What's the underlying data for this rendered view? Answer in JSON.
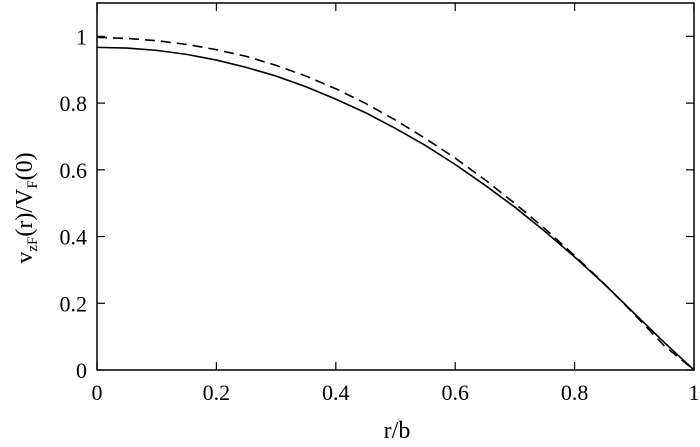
{
  "chart_data": {
    "type": "line",
    "title": "",
    "xlabel": "r/b",
    "ylabel": {
      "parts": [
        {
          "text": "v",
          "sub": false
        },
        {
          "text": "zF",
          "sub": true
        },
        {
          "text": "(r)/V",
          "sub": false
        },
        {
          "text": "F",
          "sub": true
        },
        {
          "text": "(0)",
          "sub": false
        }
      ]
    },
    "xlim": [
      0,
      1
    ],
    "ylim": [
      0,
      1.1
    ],
    "x_ticks": [
      {
        "value": 0,
        "label": "0"
      },
      {
        "value": 0.2,
        "label": "0.2"
      },
      {
        "value": 0.4,
        "label": "0.4"
      },
      {
        "value": 0.6,
        "label": "0.6"
      },
      {
        "value": 0.8,
        "label": "0.8"
      },
      {
        "value": 1,
        "label": "1"
      }
    ],
    "y_ticks": [
      {
        "value": 0,
        "label": "0"
      },
      {
        "value": 0.2,
        "label": "0.2"
      },
      {
        "value": 0.4,
        "label": "0.4"
      },
      {
        "value": 0.6,
        "label": "0.6"
      },
      {
        "value": 0.8,
        "label": "0.8"
      },
      {
        "value": 1,
        "label": "1"
      }
    ],
    "grid": false,
    "legend": "none",
    "series": [
      {
        "style": "solid",
        "color": "#000000",
        "x": [
          0,
          0.05,
          0.1,
          0.15,
          0.2,
          0.25,
          0.3,
          0.35,
          0.4,
          0.45,
          0.5,
          0.55,
          0.6,
          0.65,
          0.7,
          0.75,
          0.8,
          0.85,
          0.9,
          0.95,
          1
        ],
        "y": [
          0.967,
          0.965,
          0.958,
          0.946,
          0.929,
          0.907,
          0.881,
          0.849,
          0.812,
          0.771,
          0.724,
          0.673,
          0.616,
          0.554,
          0.488,
          0.416,
          0.339,
          0.257,
          0.17,
          0.083,
          0
        ]
      },
      {
        "style": "dashed",
        "color": "#000000",
        "x": [
          0,
          0.05,
          0.1,
          0.15,
          0.2,
          0.25,
          0.3,
          0.35,
          0.4,
          0.45,
          0.5,
          0.55,
          0.6,
          0.65,
          0.7,
          0.75,
          0.8,
          0.85,
          0.9,
          0.95,
          1
        ],
        "y": [
          0.997,
          0.994,
          0.987,
          0.976,
          0.96,
          0.94,
          0.913,
          0.881,
          0.843,
          0.799,
          0.749,
          0.694,
          0.635,
          0.57,
          0.499,
          0.424,
          0.343,
          0.258,
          0.167,
          0.073,
          0
        ]
      }
    ]
  }
}
